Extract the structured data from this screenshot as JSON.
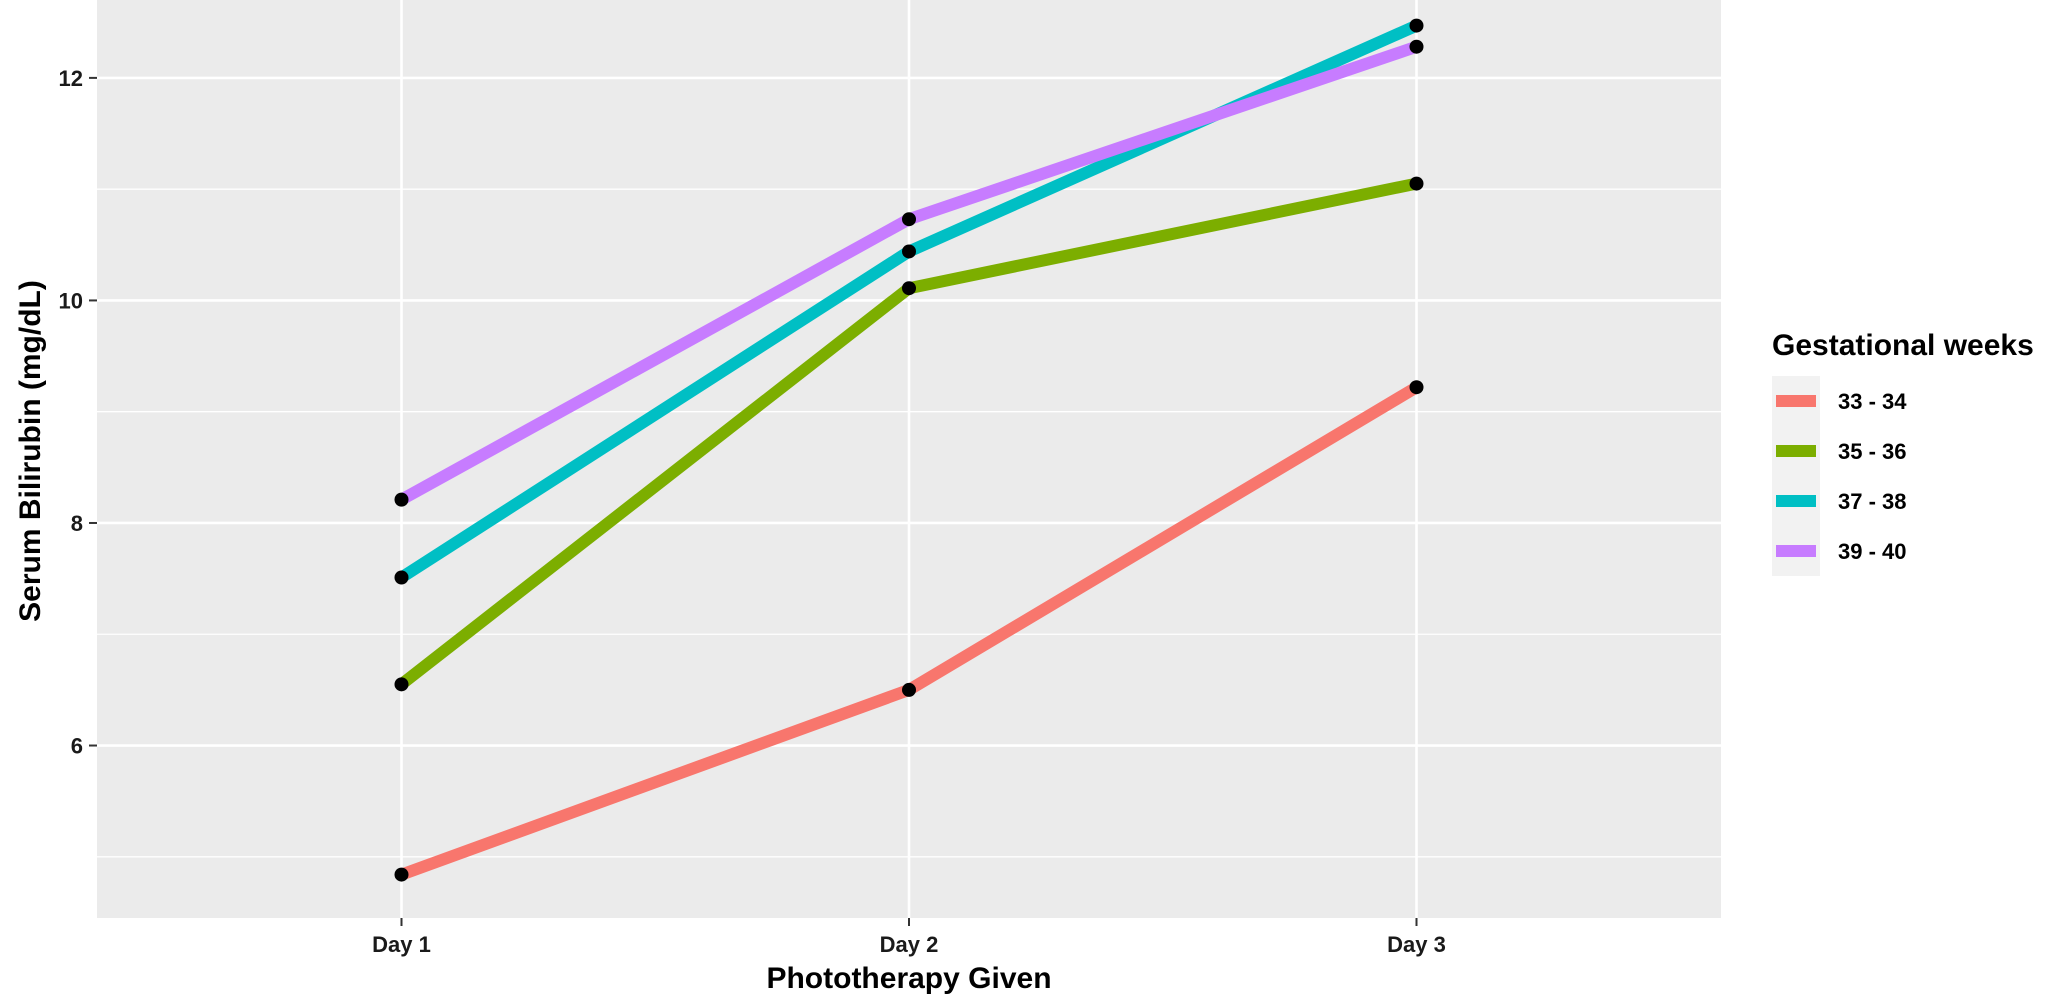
{
  "chart_data": {
    "type": "line",
    "title": "",
    "xlabel": "Phototherapy Given",
    "ylabel": "Serum Bilirubin (mg/dL)",
    "categories": [
      "Day 1",
      "Day 2",
      "Day 3"
    ],
    "ylim": [
      4.45,
      12.7
    ],
    "yticks": [
      6,
      8,
      10,
      12
    ],
    "grid": true,
    "legend": {
      "title": "Gestational weeks",
      "position": "right"
    },
    "series": [
      {
        "name": "33 - 34",
        "color": "#F8766D",
        "values": [
          4.84,
          6.5,
          9.22
        ]
      },
      {
        "name": "35 - 36",
        "color": "#7CAE00",
        "values": [
          6.55,
          10.11,
          11.05
        ]
      },
      {
        "name": "37 - 38",
        "color": "#00BFC4",
        "values": [
          7.51,
          10.44,
          12.47
        ]
      },
      {
        "name": "39 - 40",
        "color": "#C77CFF",
        "values": [
          8.21,
          10.73,
          12.28
        ]
      }
    ],
    "point_color": "#000000",
    "panel_background": "#EBEBEB",
    "grid_color": "#FFFFFF"
  }
}
